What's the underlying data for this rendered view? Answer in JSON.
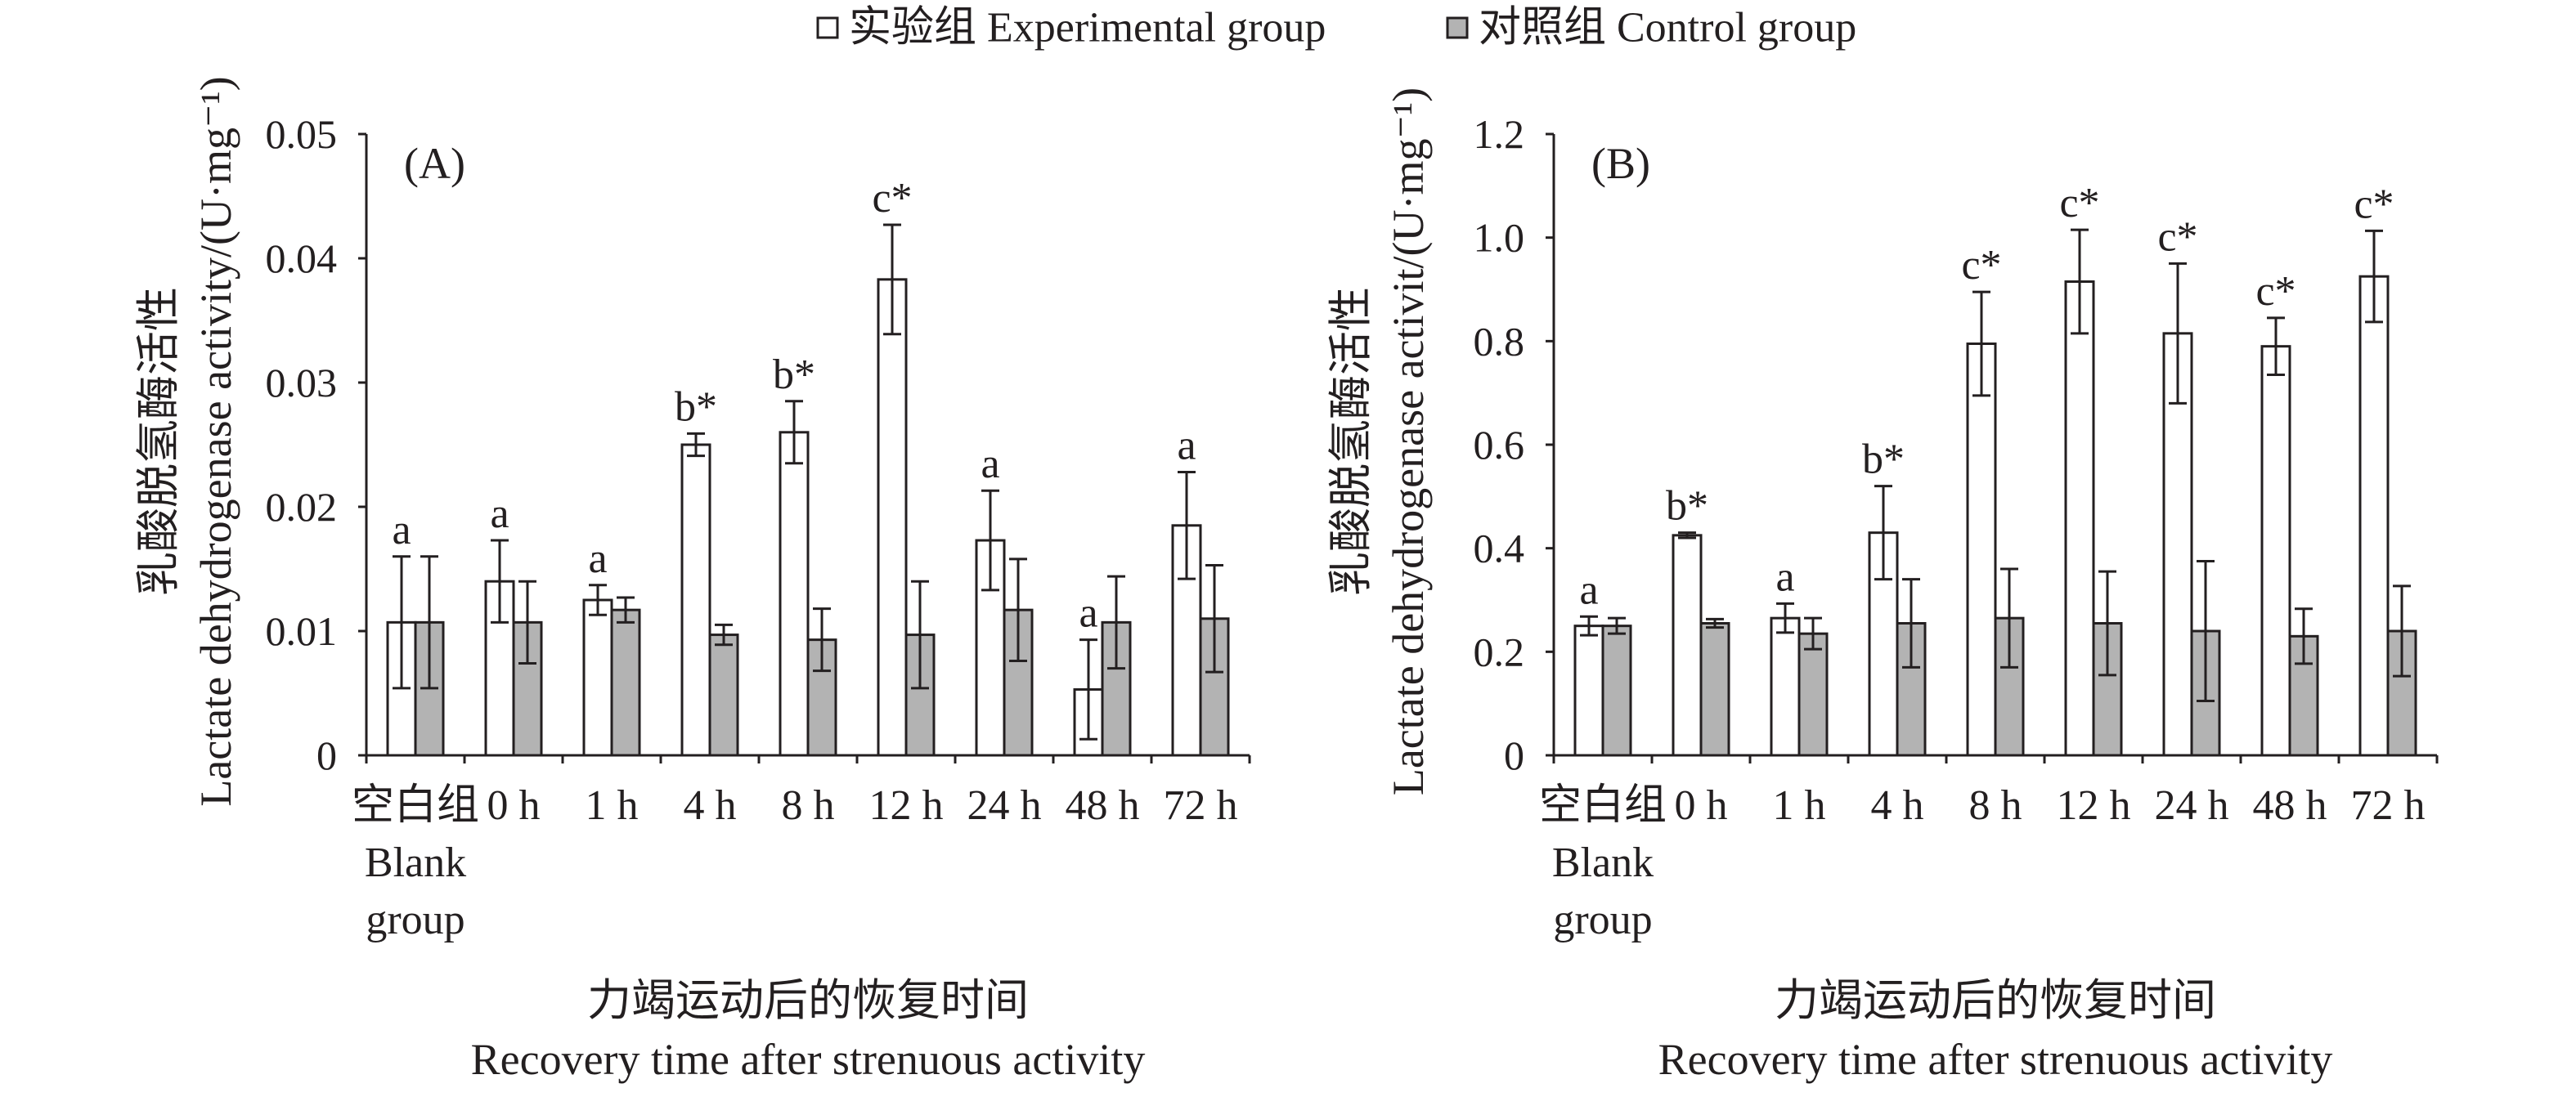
{
  "chart_data": [
    {
      "type": "bar",
      "panel_label": "(A)",
      "legend_position": "top",
      "grid": false,
      "categories": [
        "空白组\nBlank\ngroup",
        "0 h",
        "1 h",
        "4 h",
        "8 h",
        "12 h",
        "24 h",
        "48 h",
        "72 h"
      ],
      "series": [
        {
          "name": "实验组 Experimental group",
          "color": "#ffffff",
          "values": [
            0.0107,
            0.014,
            0.0125,
            0.025,
            0.026,
            0.0383,
            0.0173,
            0.0053,
            0.0185
          ],
          "errors": [
            0.0053,
            0.0033,
            0.0012,
            0.0009,
            0.0025,
            0.0044,
            0.004,
            0.004,
            0.0043
          ]
        },
        {
          "name": "对照组 Control group",
          "color": "#b3b3b3",
          "values": [
            0.0107,
            0.0107,
            0.0117,
            0.0097,
            0.0093,
            0.0097,
            0.0117,
            0.0107,
            0.011
          ],
          "errors": [
            0.0053,
            0.0033,
            0.001,
            0.0008,
            0.0025,
            0.0043,
            0.0041,
            0.0037,
            0.0043
          ]
        }
      ],
      "significance": [
        "a",
        "a",
        "a",
        "b*",
        "b*",
        "c*",
        "a",
        "a",
        "a"
      ],
      "ylabel": [
        "乳酸脱氢酶活性",
        "Lactate dehydrogenase activity/(U·mg⁻¹)"
      ],
      "xlabel": [
        "力竭运动后的恢复时间",
        "Recovery time after strenuous activity"
      ],
      "ylim": [
        0,
        0.05
      ],
      "yticks": [
        0,
        0.01,
        0.02,
        0.03,
        0.04,
        0.05
      ],
      "ytick_labels": [
        "0",
        "0.01",
        "0.02",
        "0.03",
        "0.04",
        "0.05"
      ]
    },
    {
      "type": "bar",
      "panel_label": "(B)",
      "legend_position": "top",
      "grid": false,
      "categories": [
        "空白组\nBlank\ngroup",
        "0 h",
        "1 h",
        "4 h",
        "8 h",
        "12 h",
        "24 h",
        "48 h",
        "72 h"
      ],
      "series": [
        {
          "name": "实验组 Experimental group",
          "color": "#ffffff",
          "values": [
            0.25,
            0.425,
            0.265,
            0.43,
            0.795,
            0.915,
            0.815,
            0.79,
            0.925
          ],
          "errors": [
            0.018,
            0.005,
            0.028,
            0.09,
            0.1,
            0.1,
            0.135,
            0.055,
            0.088
          ]
        },
        {
          "name": "对照组 Control group",
          "color": "#b3b3b3",
          "values": [
            0.25,
            0.255,
            0.235,
            0.255,
            0.265,
            0.255,
            0.24,
            0.23,
            0.24
          ],
          "errors": [
            0.015,
            0.008,
            0.03,
            0.085,
            0.095,
            0.1,
            0.135,
            0.053,
            0.087
          ]
        }
      ],
      "significance": [
        "a",
        "b*",
        "a",
        "b*",
        "c*",
        "c*",
        "c*",
        "c*",
        "c*"
      ],
      "ylabel": [
        "乳酸脱氢酶活性",
        "Lactate dehydrogenase activit/(U·mg⁻¹)"
      ],
      "xlabel": [
        "力竭运动后的恢复时间",
        "Recovery time after strenuous activity"
      ],
      "ylim": [
        0,
        1.2
      ],
      "yticks": [
        0,
        0.2,
        0.4,
        0.6,
        0.8,
        1.0,
        1.2
      ],
      "ytick_labels": [
        "0",
        "0.2",
        "0.4",
        "0.6",
        "0.8",
        "1.0",
        "1.2"
      ]
    }
  ]
}
